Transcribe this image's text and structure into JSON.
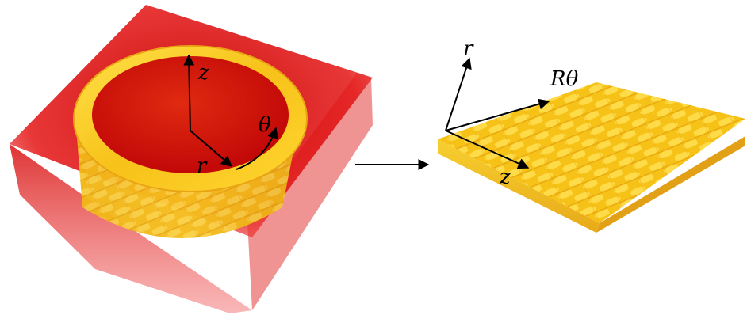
{
  "figure": {
    "left_panel": {
      "axis_labels": {
        "z": "z",
        "theta": "θ",
        "r": "r"
      }
    },
    "right_panel": {
      "axis_labels": {
        "r": "r",
        "r_theta": "Rθ",
        "z": "z"
      }
    }
  },
  "colors": {
    "box_red": "#e01010",
    "ring_yellow": "#ffd21e",
    "ring_orange": "#f0a020",
    "interior_red": "#d61008",
    "weave_gold": "#ffcf1a",
    "arrow": "#000000"
  }
}
